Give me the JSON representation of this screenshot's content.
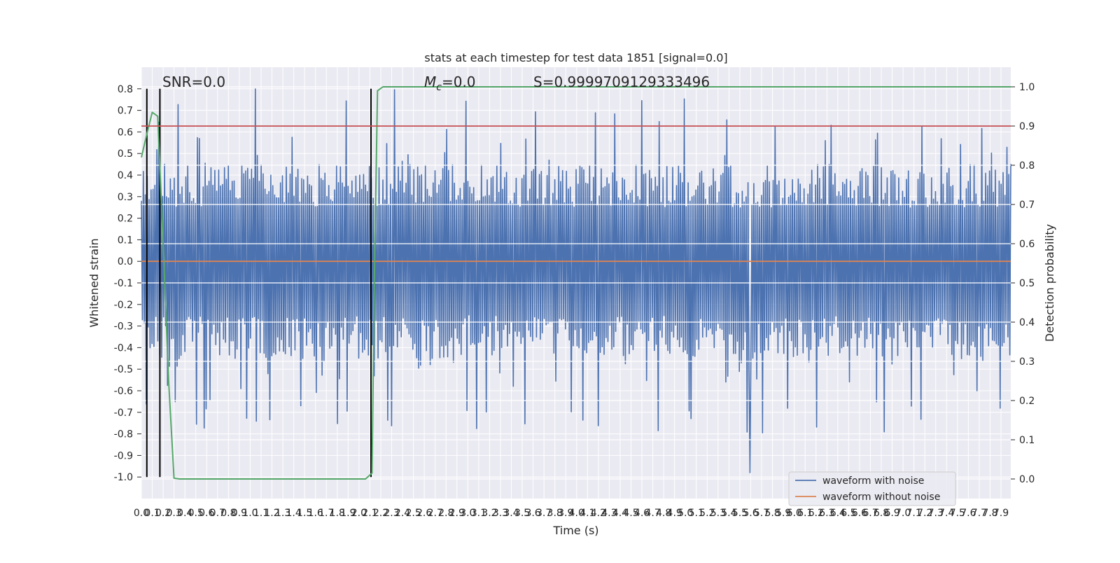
{
  "chart_data": {
    "type": "line",
    "title": "stats at each timestep for test data 1851 [signal=0.0]",
    "xlabel": "Time (s)",
    "ylabel_left": "Whitened strain",
    "ylabel_right": "Detection probability",
    "xlim": [
      0.0,
      7.99
    ],
    "ylim_left": [
      -1.1,
      0.9
    ],
    "ylim_right": [
      -0.05,
      1.05
    ],
    "x_ticks": [
      "0.0",
      "0.1",
      "0.2",
      "0.3",
      "0.4",
      "0.5",
      "0.6",
      "0.7",
      "0.8",
      "0.9",
      "1.0",
      "1.1",
      "1.2",
      "1.3",
      "1.4",
      "1.5",
      "1.6",
      "1.7",
      "1.8",
      "1.9",
      "2.0",
      "2.1",
      "2.2",
      "2.3",
      "2.4",
      "2.5",
      "2.6",
      "2.7",
      "2.8",
      "2.9",
      "3.0",
      "3.1",
      "3.2",
      "3.3",
      "3.4",
      "3.5",
      "3.6",
      "3.7",
      "3.8",
      "3.9",
      "4.0",
      "4.1",
      "4.2",
      "4.3",
      "4.4",
      "4.5",
      "4.6",
      "4.7",
      "4.8",
      "4.9",
      "5.0",
      "5.1",
      "5.2",
      "5.3",
      "5.4",
      "5.5",
      "5.6",
      "5.7",
      "5.8",
      "5.9",
      "6.0",
      "6.1",
      "6.2",
      "6.3",
      "6.4",
      "6.5",
      "6.6",
      "6.7",
      "6.8",
      "6.9",
      "7.0",
      "7.1",
      "7.2",
      "7.3",
      "7.4",
      "7.5",
      "7.6",
      "7.7",
      "7.8",
      "7.9"
    ],
    "y_ticks_left": [
      "0.8",
      "0.7",
      "0.6",
      "0.5",
      "0.4",
      "0.3",
      "0.2",
      "0.1",
      "0.0",
      "-0.1",
      "-0.2",
      "-0.3",
      "-0.4",
      "-0.5",
      "-0.6",
      "-0.7",
      "-0.8",
      "-0.9",
      "-1.0"
    ],
    "y_ticks_right": [
      "1.0",
      "0.9",
      "0.8",
      "0.7",
      "0.6",
      "0.5",
      "0.4",
      "0.3",
      "0.2",
      "0.1",
      "0.0"
    ],
    "annotations": {
      "snr": "SNR=0.0",
      "mc_symbol": "M",
      "mc_sub": "c",
      "mc_value": "=0.0",
      "s": "S=0.9999709129333496"
    },
    "vertical_markers_s": [
      0.05,
      0.17,
      2.11
    ],
    "threshold_probability": 0.9,
    "noise_envelope": {
      "upper": 0.45,
      "lower": -0.45,
      "typical_peak_max": 0.8,
      "min_spike": -0.98
    },
    "series": [
      {
        "name": "waveform with noise",
        "color": "#4c72b0",
        "axis": "left",
        "kind": "noise",
        "sample_rate_display": 900
      },
      {
        "name": "waveform without noise",
        "color": "#dd8452",
        "axis": "left",
        "x": [
          0.0,
          7.99
        ],
        "y": [
          0.0,
          0.0
        ]
      },
      {
        "name": "Detection probability",
        "color": "#55a868",
        "axis": "right",
        "x": [
          0.0,
          0.05,
          0.1,
          0.15,
          0.2,
          0.25,
          0.3,
          0.35,
          0.4,
          0.5,
          1.0,
          1.5,
          2.0,
          2.06,
          2.12,
          2.14,
          2.17,
          2.22,
          2.3,
          3.0,
          4.0,
          5.0,
          6.0,
          7.0,
          7.99
        ],
        "y": [
          0.82,
          0.88,
          0.935,
          0.925,
          0.6,
          0.25,
          0.002,
          0.0,
          0.0,
          0.0,
          0.0,
          0.0,
          0.0,
          0.0,
          0.015,
          0.5,
          0.99,
          1.0,
          1.0,
          1.0,
          1.0,
          1.0,
          1.0,
          1.0,
          1.0
        ]
      },
      {
        "name": "threshold",
        "color": "#c44e52",
        "axis": "right",
        "x": [
          0.0,
          7.99
        ],
        "y": [
          0.9,
          0.9
        ]
      }
    ],
    "legend": {
      "placement": "lower-right",
      "entries": [
        "waveform with noise",
        "waveform without noise"
      ]
    }
  }
}
